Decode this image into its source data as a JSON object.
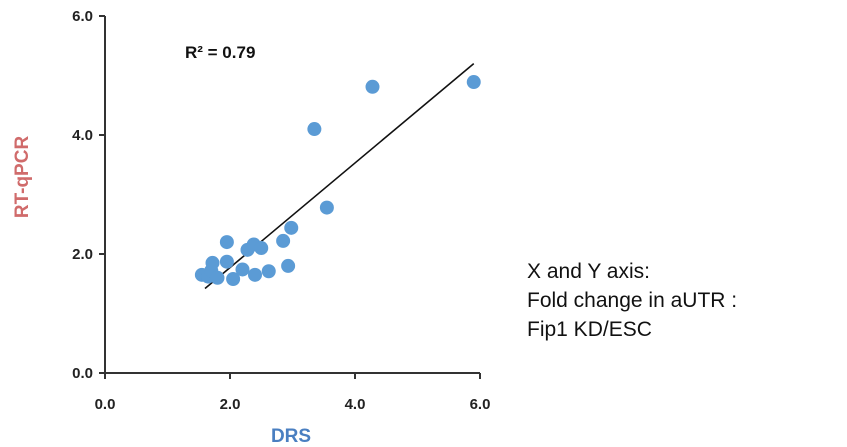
{
  "chart_data": {
    "type": "scatter",
    "xlabel": "DRS",
    "ylabel": "RT-qPCR",
    "xlim": [
      0,
      6
    ],
    "ylim": [
      0,
      6
    ],
    "x_ticks": [
      "0.0",
      "2.0",
      "4.0",
      "6.0"
    ],
    "y_ticks": [
      "0.0",
      "2.0",
      "4.0",
      "6.0"
    ],
    "annotation": "R² = 0.79",
    "trendline": {
      "x": [
        1.6,
        5.9
      ],
      "y": [
        1.42,
        5.2
      ]
    },
    "marker_color": "#5b9bd5",
    "points": [
      {
        "x": 1.55,
        "y": 1.65
      },
      {
        "x": 1.65,
        "y": 1.62
      },
      {
        "x": 1.7,
        "y": 1.72
      },
      {
        "x": 1.72,
        "y": 1.85
      },
      {
        "x": 1.8,
        "y": 1.6
      },
      {
        "x": 1.95,
        "y": 2.2
      },
      {
        "x": 1.95,
        "y": 1.87
      },
      {
        "x": 2.05,
        "y": 1.58
      },
      {
        "x": 2.2,
        "y": 1.74
      },
      {
        "x": 2.28,
        "y": 2.07
      },
      {
        "x": 2.38,
        "y": 2.16
      },
      {
        "x": 2.4,
        "y": 1.65
      },
      {
        "x": 2.5,
        "y": 2.1
      },
      {
        "x": 2.62,
        "y": 1.71
      },
      {
        "x": 2.85,
        "y": 2.22
      },
      {
        "x": 2.93,
        "y": 1.8
      },
      {
        "x": 2.98,
        "y": 2.44
      },
      {
        "x": 3.35,
        "y": 4.1
      },
      {
        "x": 3.55,
        "y": 2.78
      },
      {
        "x": 4.28,
        "y": 4.81
      },
      {
        "x": 5.9,
        "y": 4.89
      }
    ]
  },
  "note": {
    "line1": "X and Y axis:",
    "line2": "Fold change in aUTR :",
    "line3": "Fip1 KD/ESC"
  }
}
